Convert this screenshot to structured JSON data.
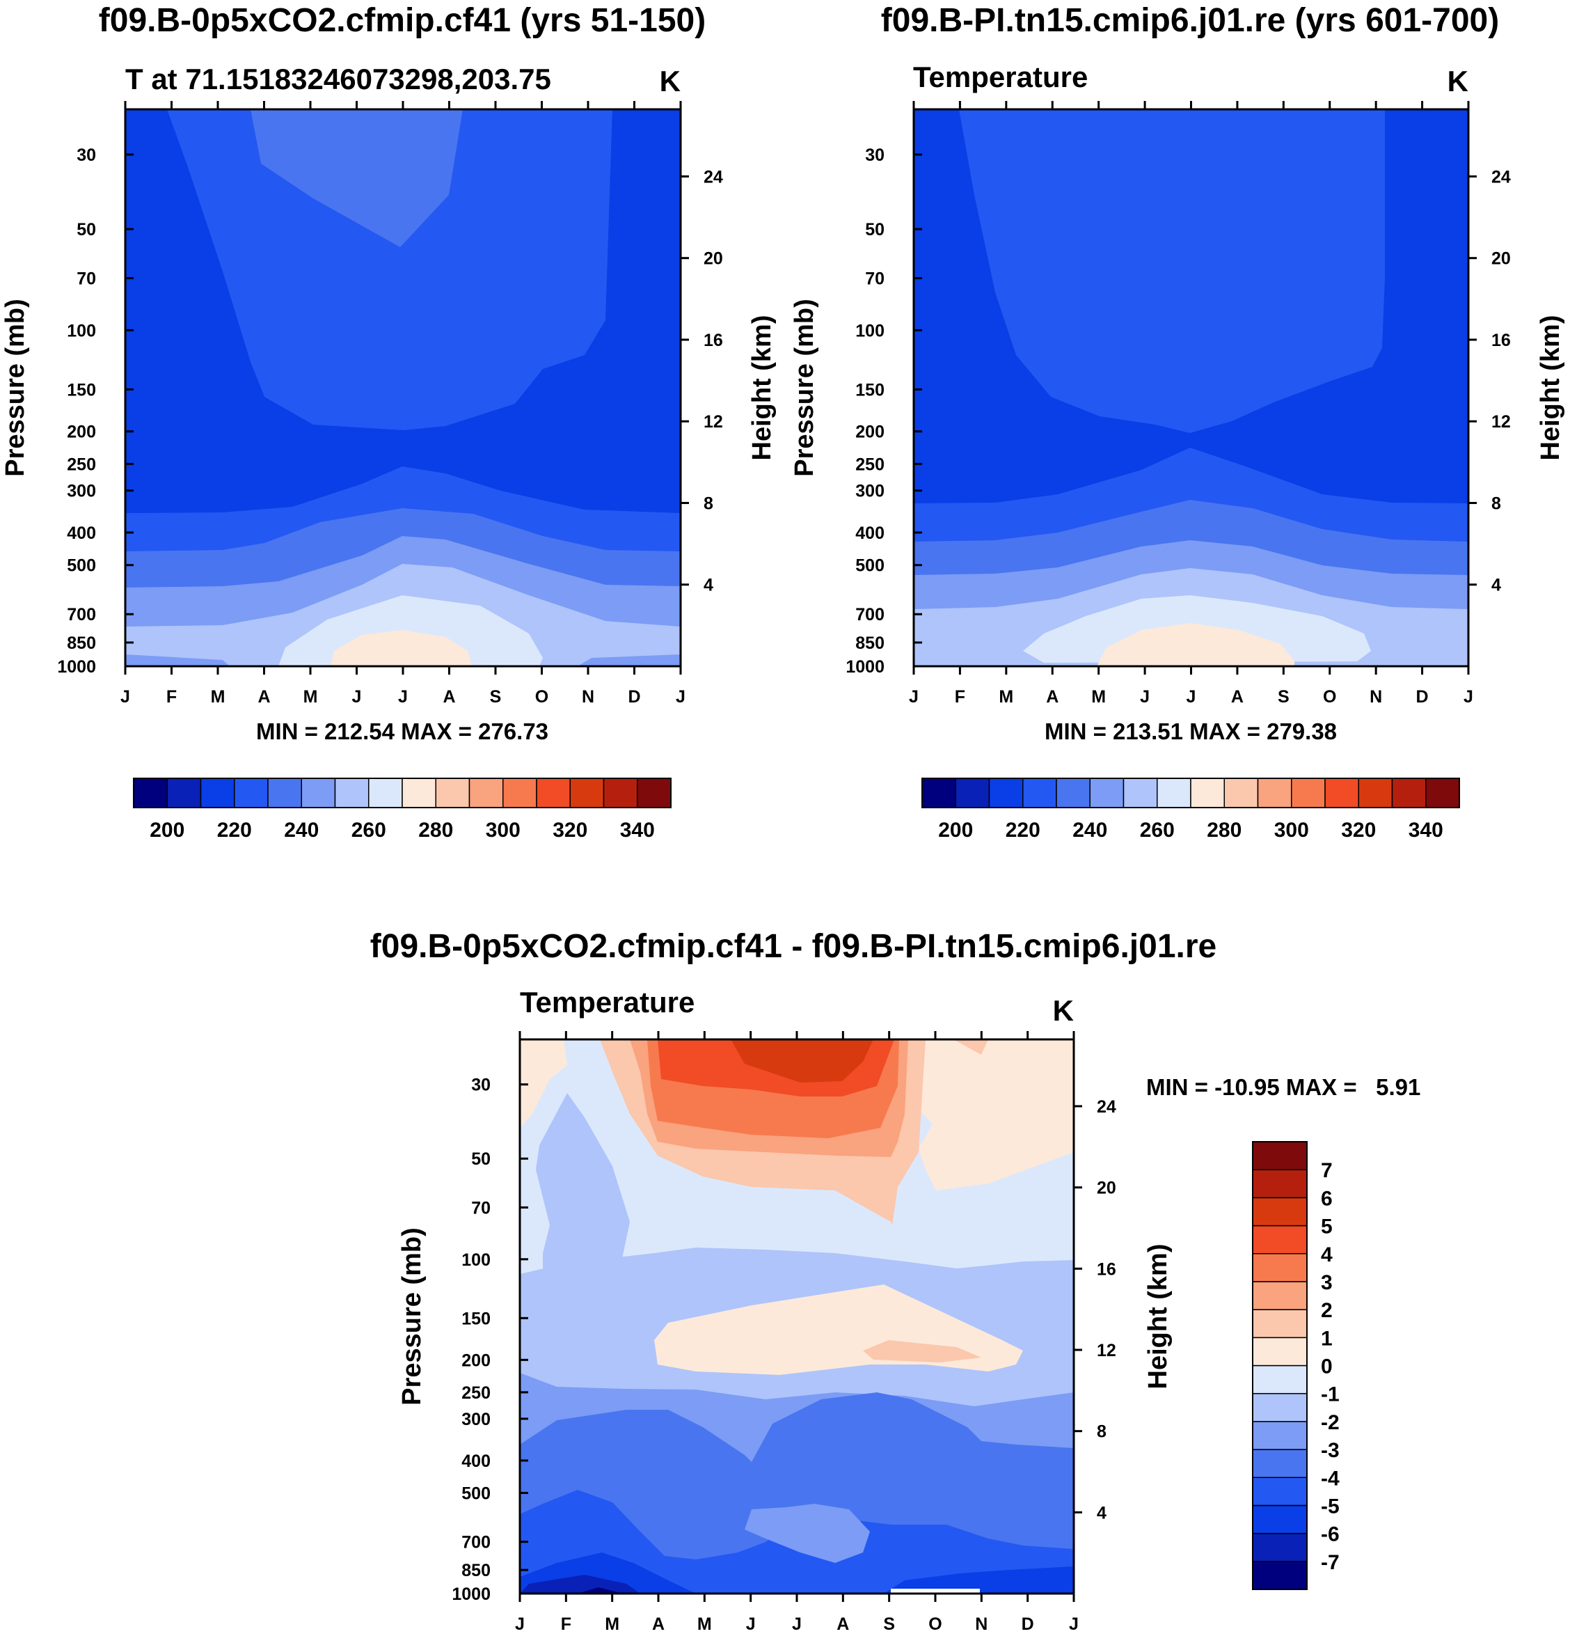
{
  "chart_data": [
    {
      "type": "heatmap",
      "title": "f09.B-0p5xCO2.cfmip.cf41 (yrs 51-150)",
      "subtitle_left": "T at 71.15183246073298,203.75",
      "subtitle_right": "K",
      "ylabel_left": "Pressure (mb)",
      "ylabel_right": "Height (km)",
      "xticks": [
        "J",
        "F",
        "M",
        "A",
        "M",
        "J",
        "J",
        "A",
        "S",
        "O",
        "N",
        "D",
        "J"
      ],
      "pressure_ticks": [
        30,
        50,
        70,
        100,
        150,
        200,
        250,
        300,
        400,
        500,
        700,
        850,
        1000
      ],
      "pressure_tick_labels": [
        "30",
        "50",
        "70",
        "100",
        "150",
        "200",
        "250",
        "300",
        "400",
        "500",
        "700",
        "850",
        "1000"
      ],
      "height_ticks": [
        24,
        20,
        16,
        12,
        8,
        4
      ],
      "height_tick_labels": [
        "24",
        "20",
        "16",
        "12",
        "8",
        "4"
      ],
      "ylim": [
        1000,
        22
      ],
      "min_max_text": "MIN = 212.54 MAX = 276.73",
      "min": 212.54,
      "max": 276.73,
      "colorbar": {
        "orientation": "horizontal",
        "levels": [
          200,
          210,
          220,
          230,
          240,
          250,
          260,
          270,
          280,
          290,
          300,
          310,
          320,
          330,
          340
        ],
        "labels": [
          "200",
          "220",
          "240",
          "260",
          "280",
          "300",
          "320",
          "340"
        ],
        "colors": [
          "#00007f",
          "#0921b7",
          "#0a3ee6",
          "#2358f2",
          "#4a75f0",
          "#7c9cf5",
          "#aec4fa",
          "#dbe8fc",
          "#fde9da",
          "#fbc7ad",
          "#f9a37f",
          "#f77a4f",
          "#f14c25",
          "#d83a10",
          "#b5200e",
          "#7e0a0b"
        ]
      }
    },
    {
      "type": "heatmap",
      "title": "f09.B-PI.tn15.cmip6.j01.re (yrs 601-700)",
      "subtitle_left": "Temperature",
      "subtitle_right": "K",
      "ylabel_left": "Pressure (mb)",
      "ylabel_right": "Height (km)",
      "xticks": [
        "J",
        "F",
        "M",
        "A",
        "M",
        "J",
        "J",
        "A",
        "S",
        "O",
        "N",
        "D",
        "J"
      ],
      "pressure_ticks": [
        30,
        50,
        70,
        100,
        150,
        200,
        250,
        300,
        400,
        500,
        700,
        850,
        1000
      ],
      "pressure_tick_labels": [
        "30",
        "50",
        "70",
        "100",
        "150",
        "200",
        "250",
        "300",
        "400",
        "500",
        "700",
        "850",
        "1000"
      ],
      "height_ticks": [
        24,
        20,
        16,
        12,
        8,
        4
      ],
      "height_tick_labels": [
        "24",
        "20",
        "16",
        "12",
        "8",
        "4"
      ],
      "ylim": [
        1000,
        22
      ],
      "min_max_text": "MIN = 213.51 MAX = 279.38",
      "min": 213.51,
      "max": 279.38,
      "colorbar": {
        "orientation": "horizontal",
        "levels": [
          200,
          210,
          220,
          230,
          240,
          250,
          260,
          270,
          280,
          290,
          300,
          310,
          320,
          330,
          340
        ],
        "labels": [
          "200",
          "220",
          "240",
          "260",
          "280",
          "300",
          "320",
          "340"
        ],
        "colors": [
          "#00007f",
          "#0921b7",
          "#0a3ee6",
          "#2358f2",
          "#4a75f0",
          "#7c9cf5",
          "#aec4fa",
          "#dbe8fc",
          "#fde9da",
          "#fbc7ad",
          "#f9a37f",
          "#f77a4f",
          "#f14c25",
          "#d83a10",
          "#b5200e",
          "#7e0a0b"
        ]
      }
    },
    {
      "type": "heatmap",
      "title": "f09.B-0p5xCO2.cfmip.cf41 - f09.B-PI.tn15.cmip6.j01.re",
      "subtitle_left": "Temperature",
      "subtitle_right": "K",
      "ylabel_left": "Pressure (mb)",
      "ylabel_right": "Height (km)",
      "xticks": [
        "J",
        "F",
        "M",
        "A",
        "M",
        "J",
        "J",
        "A",
        "S",
        "O",
        "N",
        "D",
        "J"
      ],
      "pressure_ticks": [
        30,
        50,
        70,
        100,
        150,
        200,
        250,
        300,
        400,
        500,
        700,
        850,
        1000
      ],
      "pressure_tick_labels": [
        "30",
        "50",
        "70",
        "100",
        "150",
        "200",
        "250",
        "300",
        "400",
        "500",
        "700",
        "850",
        "1000"
      ],
      "height_ticks": [
        24,
        20,
        16,
        12,
        8,
        4
      ],
      "height_tick_labels": [
        "24",
        "20",
        "16",
        "12",
        "8",
        "4"
      ],
      "ylim": [
        1000,
        22
      ],
      "min_max_text": "MIN = -10.95 MAX =   5.91",
      "min": -10.95,
      "max": 5.91,
      "colorbar": {
        "orientation": "vertical",
        "levels": [
          -7,
          -6,
          -5,
          -4,
          -3,
          -2,
          -1,
          0,
          1,
          2,
          3,
          4,
          5,
          6,
          7
        ],
        "labels": [
          "-7",
          "-6",
          "-5",
          "-4",
          "-3",
          "-2",
          "-1",
          "0",
          "1",
          "2",
          "3",
          "4",
          "5",
          "6",
          "7"
        ],
        "colors": [
          "#00007f",
          "#0921b7",
          "#0a3ee6",
          "#2358f2",
          "#4a75f0",
          "#7c9cf5",
          "#aec4fa",
          "#dbe8fc",
          "#fde9da",
          "#fbc7ad",
          "#f9a37f",
          "#f77a4f",
          "#f14c25",
          "#d83a10",
          "#b5200e",
          "#7e0a0b"
        ]
      }
    }
  ]
}
